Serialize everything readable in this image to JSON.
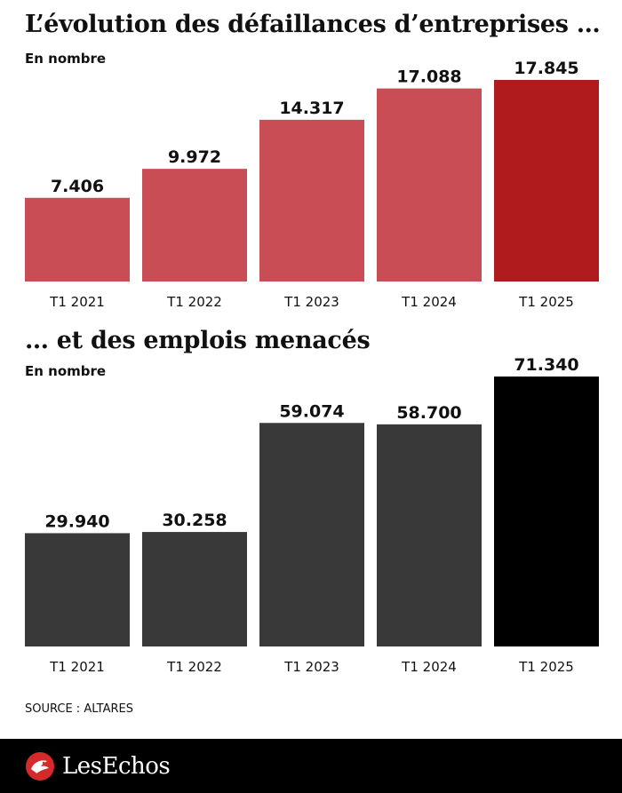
{
  "charts": {
    "defaillances": {
      "title": "L’évolution des défaillances d’entreprises …",
      "unit": "En nombre"
    },
    "emplois": {
      "title": "… et des emplois menacés",
      "unit": "En nombre"
    }
  },
  "source": "SOURCE : ALTARES",
  "footer": {
    "brand": "LesEchos",
    "logo_icon": "les-echos-logo-icon"
  },
  "colors": {
    "red_bar": "#c94d54",
    "red_highlight": "#b01c1e",
    "grey_bar": "#393939",
    "black_highlight": "#000000"
  },
  "chart_data": [
    {
      "type": "bar",
      "title": "L’évolution des défaillances d’entreprises …",
      "subtitle": "En nombre",
      "categories": [
        "T1 2021",
        "T1 2022",
        "T1 2023",
        "T1 2024",
        "T1 2025"
      ],
      "values": [
        7406,
        9972,
        14317,
        17088,
        17845
      ],
      "value_labels": [
        "7.406",
        "9.972",
        "14.317",
        "17.088",
        "17.845"
      ],
      "highlight_index": 4,
      "ylim": [
        0,
        17845
      ],
      "grid": false
    },
    {
      "type": "bar",
      "title": "… et des emplois menacés",
      "subtitle": "En nombre",
      "categories": [
        "T1 2021",
        "T1 2022",
        "T1 2023",
        "T1 2024",
        "T1 2025"
      ],
      "values": [
        29940,
        30258,
        59074,
        58700,
        71340
      ],
      "value_labels": [
        "29.940",
        "30.258",
        "59.074",
        "58.700",
        "71.340"
      ],
      "highlight_index": 4,
      "ylim": [
        0,
        71340
      ],
      "grid": false
    }
  ]
}
